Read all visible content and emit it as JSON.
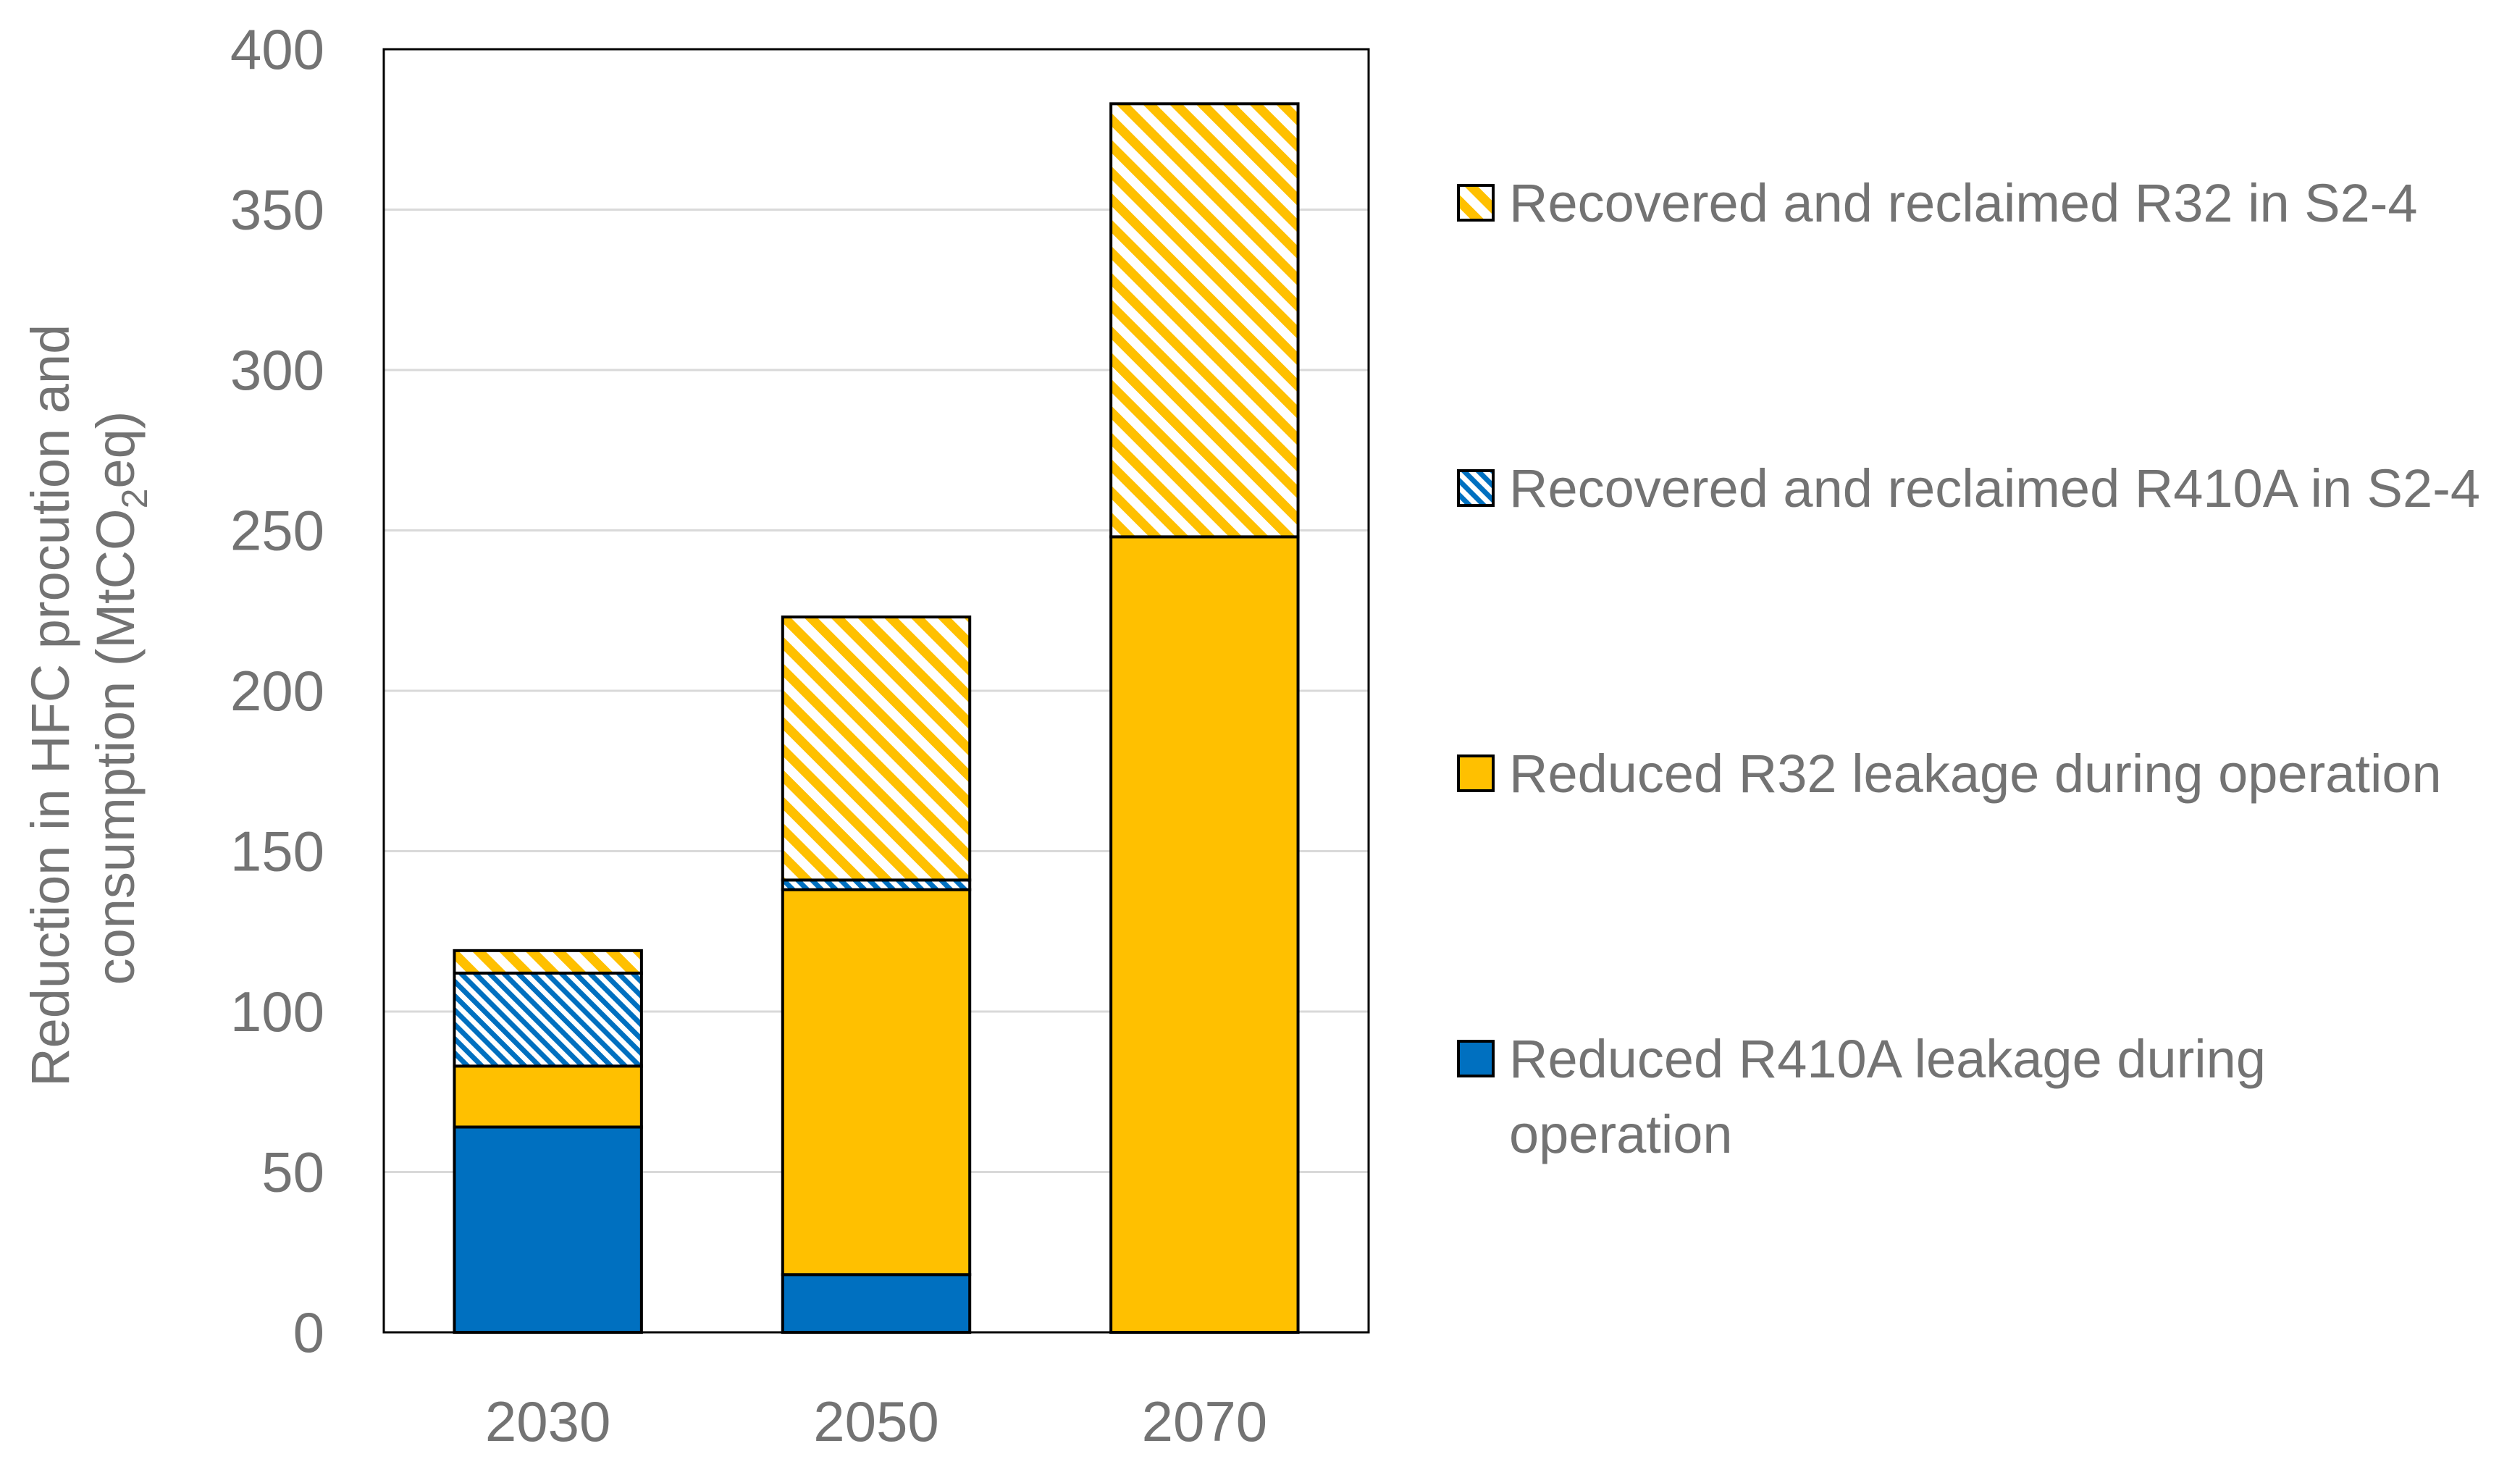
{
  "chart_data": {
    "type": "bar",
    "stacked": true,
    "title": "",
    "xlabel": "",
    "ylabel_line1": "Reduction in HFC procution and",
    "ylabel_line2_pre": "consumption (MtCO",
    "ylabel_line2_sub": "2",
    "ylabel_line2_post": "eq)",
    "ylim": [
      0,
      400
    ],
    "yticks": [
      0,
      50,
      100,
      150,
      200,
      250,
      300,
      350,
      400
    ],
    "grid": true,
    "categories": [
      "2030",
      "2050",
      "2070"
    ],
    "series": [
      {
        "name": "Reduced R410A leakage during operation",
        "legend_lines": [
          "Reduced R410A leakage during",
          "operation"
        ],
        "values": [
          64,
          18,
          0
        ],
        "color": "#0070C0",
        "pattern": "solid"
      },
      {
        "name": "Reduced R32 leakage during operation",
        "legend_lines": [
          "Reduced R32 leakage during operation"
        ],
        "values": [
          19,
          120,
          248
        ],
        "color": "#FFC000",
        "pattern": "solid"
      },
      {
        "name": "Recovered and reclaimed R410A in S2-4",
        "legend_lines": [
          "Recovered and reclaimed R410A in S2-4"
        ],
        "values": [
          29,
          3,
          0
        ],
        "color": "#0070C0",
        "pattern": "hatch"
      },
      {
        "name": "Recovered and reclaimed R32 in S2-4",
        "legend_lines": [
          "Recovered and reclaimed R32 in S2-4"
        ],
        "values": [
          7,
          82,
          135
        ],
        "color": "#FFC000",
        "pattern": "hatch"
      }
    ],
    "legend_position": "right",
    "legend_order": [
      3,
      2,
      1,
      0
    ]
  }
}
